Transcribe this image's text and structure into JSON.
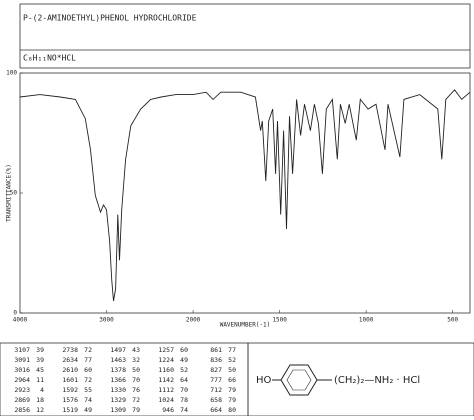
{
  "header": {
    "title": "P-(2-AMINOETHYL)PHENOL HYDROCHLORIDE",
    "formula": "C₈H₁₁NO*HCL"
  },
  "chart_data": {
    "type": "line",
    "xlabel": "WAVENUMBER(-1)",
    "ylabel": "TRANSMITTANCE(%)",
    "color": "#222222",
    "xlim": [
      4000,
      400
    ],
    "xscale": {
      "type": "piecewise",
      "break": 2000,
      "factor": 2
    },
    "xticks": [
      4000,
      3000,
      2000,
      1500,
      1000,
      500
    ],
    "ylim": [
      0,
      100
    ],
    "yticks": [
      0,
      50,
      100
    ],
    "x": [
      4000,
      3770,
      3535,
      3360,
      3245,
      3185,
      3130,
      3095,
      3070,
      3035,
      3000,
      2965,
      2940,
      2920,
      2895,
      2870,
      2850,
      2825,
      2780,
      2720,
      2605,
      2490,
      2370,
      2200,
      2000,
      1925,
      1885,
      1840,
      1725,
      1640,
      1610,
      1600,
      1580,
      1563,
      1540,
      1523,
      1512,
      1494,
      1477,
      1460,
      1443,
      1425,
      1402,
      1379,
      1356,
      1322,
      1299,
      1276,
      1253,
      1230,
      1195,
      1167,
      1149,
      1121,
      1098,
      1057,
      1034,
      989,
      943,
      891,
      874,
      805,
      782,
      690,
      586,
      563,
      540,
      489,
      448,
      400
    ],
    "values": [
      90,
      91,
      90,
      89,
      81,
      68,
      49,
      45,
      42,
      45,
      43,
      30,
      14,
      5,
      10,
      41,
      22,
      43,
      64,
      78,
      85,
      89,
      90,
      91,
      91,
      92,
      89,
      92,
      92,
      90,
      76,
      80,
      55,
      80,
      85,
      58,
      80,
      41,
      76,
      35,
      82,
      58,
      89,
      74,
      87,
      76,
      87,
      79,
      58,
      85,
      89,
      64,
      87,
      79,
      87,
      72,
      89,
      85,
      87,
      68,
      87,
      65,
      89,
      91,
      85,
      64,
      89,
      93,
      89,
      92
    ]
  },
  "peak_table": {
    "rows": [
      [
        "3107",
        "39",
        "2738",
        "72",
        "1497",
        "43",
        "1257",
        "60",
        "861",
        "77"
      ],
      [
        "3091",
        "39",
        "2634",
        "77",
        "1463",
        "32",
        "1224",
        "49",
        "836",
        "52"
      ],
      [
        "3016",
        "45",
        "2610",
        "60",
        "1378",
        "50",
        "1160",
        "52",
        "827",
        "50"
      ],
      [
        "2964",
        "11",
        "1601",
        "72",
        "1366",
        "70",
        "1142",
        "64",
        "777",
        "66"
      ],
      [
        "2923",
        "4",
        "1592",
        "55",
        "1330",
        "76",
        "1112",
        "70",
        "712",
        "79"
      ],
      [
        "2869",
        "18",
        "1576",
        "74",
        "1329",
        "72",
        "1024",
        "78",
        "658",
        "79"
      ],
      [
        "2856",
        "12",
        "1519",
        "49",
        "1309",
        "79",
        "946",
        "74",
        "664",
        "80"
      ]
    ]
  },
  "structure": {
    "left": "HO",
    "right": "(CH₂)₂—NH₂ · HCl"
  }
}
